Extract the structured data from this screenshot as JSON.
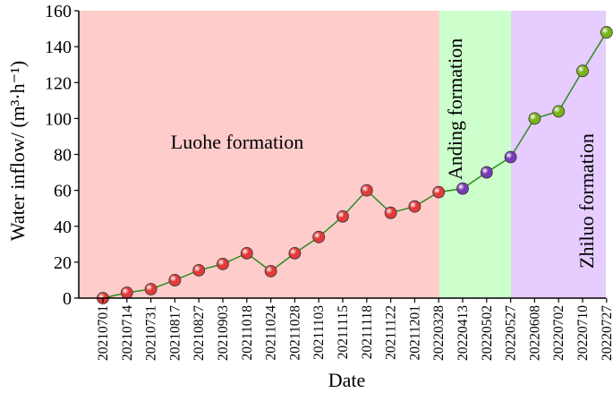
{
  "chart_data": {
    "type": "line",
    "xlabel": "Date",
    "ylabel": "Water inflow/ (m³·h⁻¹)",
    "ylim": [
      0,
      160
    ],
    "yticks": [
      0,
      20,
      40,
      60,
      80,
      100,
      120,
      140,
      160
    ],
    "categories": [
      "20210701",
      "20210714",
      "20210731",
      "20210817",
      "20210827",
      "20210903",
      "20211018",
      "20211024",
      "20211028",
      "20211103",
      "20211115",
      "20211118",
      "20211122",
      "20211201",
      "20220328",
      "20220413",
      "20220502",
      "20220527",
      "20220608",
      "20220702",
      "20220710",
      "20220727"
    ],
    "values": [
      0,
      3,
      5,
      10,
      15.5,
      19,
      25,
      15,
      25,
      34,
      45.5,
      60,
      47.5,
      51,
      59,
      61,
      70,
      78.5,
      100,
      104,
      126.5,
      148
    ],
    "line_color": "#2e8b1e",
    "regions": [
      {
        "label": "Luohe formation",
        "from_index": 0,
        "to_index": 14,
        "fill": "#ffcccc",
        "marker": "#e23a3a",
        "label_orientation": "horizontal"
      },
      {
        "label": "Anding formation",
        "from_index": 14,
        "to_index": 17,
        "fill": "#ccffcc",
        "marker": "#7a3ab8",
        "label_orientation": "vertical"
      },
      {
        "label": "Zhiluo formation",
        "from_index": 17,
        "to_index": 21,
        "fill": "#e6ccff",
        "marker": "#7ab317",
        "label_orientation": "vertical"
      }
    ]
  }
}
